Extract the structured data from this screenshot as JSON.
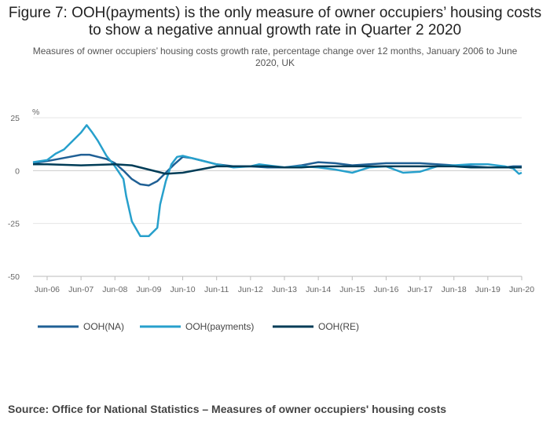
{
  "title": "Figure 7: OOH(payments) is the only measure of owner occupiers’ housing costs to show a negative annual growth rate in Quarter 2 2020",
  "subtitle": "Measures of owner occupiers’ housing costs growth rate, percentage change over 12 months, January 2006 to June 2020, UK",
  "source": "Source: Office for National Statistics – Measures of owner occupiers' housing costs",
  "chart_data": {
    "type": "line",
    "ylabel": "%",
    "ylim": [
      -50,
      25
    ],
    "yticks": [
      25,
      0,
      -25,
      -50
    ],
    "x_start": "Jan 2006",
    "x_end": "Jun 2020",
    "x_tick_labels": [
      "Jun-06",
      "Jun-07",
      "Jun-08",
      "Jun-09",
      "Jun-10",
      "Jun-11",
      "Jun-12",
      "Jun-13",
      "Jun-14",
      "Jun-15",
      "Jun-16",
      "Jun-17",
      "Jun-18",
      "Jun-19",
      "Jun-20"
    ],
    "grid": true,
    "legend_position": "bottom-left",
    "series": [
      {
        "name": "OOH(NA)",
        "color": "#206095",
        "points": [
          [
            "Jan-06",
            3.5
          ],
          [
            "Jun-06",
            4.5
          ],
          [
            "Dec-06",
            6
          ],
          [
            "Jun-07",
            7.5
          ],
          [
            "Sep-07",
            7.5
          ],
          [
            "Dec-07",
            6.5
          ],
          [
            "Mar-08",
            5.5
          ],
          [
            "Jun-08",
            3.5
          ],
          [
            "Sep-08",
            0
          ],
          [
            "Dec-08",
            -4
          ],
          [
            "Mar-09",
            -6.5
          ],
          [
            "Jun-09",
            -7
          ],
          [
            "Sep-09",
            -5
          ],
          [
            "Dec-09",
            -1
          ],
          [
            "Mar-10",
            3
          ],
          [
            "Jun-10",
            6.5
          ],
          [
            "Sep-10",
            6
          ],
          [
            "Dec-10",
            5
          ],
          [
            "Jun-11",
            3
          ],
          [
            "Dec-11",
            2
          ],
          [
            "Jun-12",
            2
          ],
          [
            "Dec-12",
            1.5
          ],
          [
            "Jun-13",
            1.5
          ],
          [
            "Dec-13",
            2.5
          ],
          [
            "Jun-14",
            4
          ],
          [
            "Dec-14",
            3.5
          ],
          [
            "Jun-15",
            2.5
          ],
          [
            "Dec-15",
            3
          ],
          [
            "Jun-16",
            3.5
          ],
          [
            "Dec-16",
            3.5
          ],
          [
            "Jun-17",
            3.5
          ],
          [
            "Dec-17",
            3
          ],
          [
            "Jun-18",
            2.5
          ],
          [
            "Dec-18",
            2
          ],
          [
            "Jun-19",
            1.5
          ],
          [
            "Dec-19",
            1.5
          ],
          [
            "Mar-20",
            2
          ],
          [
            "Jun-20",
            2
          ]
        ]
      },
      {
        "name": "OOH(payments)",
        "color": "#27a0cc",
        "points": [
          [
            "Jan-06",
            4
          ],
          [
            "Jun-06",
            5
          ],
          [
            "Sep-06",
            8
          ],
          [
            "Dec-06",
            10
          ],
          [
            "Mar-07",
            14
          ],
          [
            "Jun-07",
            18
          ],
          [
            "Aug-07",
            21.5
          ],
          [
            "Oct-07",
            18
          ],
          [
            "Dec-07",
            14
          ],
          [
            "Mar-08",
            7
          ],
          [
            "Jun-08",
            2
          ],
          [
            "Sep-08",
            -4
          ],
          [
            "Oct-08",
            -12
          ],
          [
            "Dec-08",
            -24
          ],
          [
            "Mar-09",
            -31
          ],
          [
            "Jun-09",
            -31
          ],
          [
            "Sep-09",
            -27
          ],
          [
            "Oct-09",
            -16
          ],
          [
            "Dec-09",
            -5
          ],
          [
            "Feb-10",
            3
          ],
          [
            "Apr-10",
            6.5
          ],
          [
            "Jun-10",
            7
          ],
          [
            "Sep-10",
            6
          ],
          [
            "Dec-10",
            5
          ],
          [
            "Jun-11",
            3
          ],
          [
            "Dec-11",
            1.5
          ],
          [
            "Jun-12",
            2
          ],
          [
            "Sep-12",
            3
          ],
          [
            "Dec-12",
            2.5
          ],
          [
            "Jun-13",
            1.5
          ],
          [
            "Dec-13",
            2
          ],
          [
            "Jun-14",
            1.5
          ],
          [
            "Dec-14",
            0.5
          ],
          [
            "Jun-15",
            -1
          ],
          [
            "Dec-15",
            1.5
          ],
          [
            "Jun-16",
            2
          ],
          [
            "Sep-16",
            0.5
          ],
          [
            "Dec-16",
            -1
          ],
          [
            "Jun-17",
            -0.5
          ],
          [
            "Dec-17",
            2
          ],
          [
            "Jun-18",
            2.5
          ],
          [
            "Dec-18",
            3
          ],
          [
            "Jun-19",
            3
          ],
          [
            "Dec-19",
            2
          ],
          [
            "Mar-20",
            1
          ],
          [
            "May-20",
            -1.5
          ],
          [
            "Jun-20",
            -1
          ]
        ]
      },
      {
        "name": "OOH(RE)",
        "color": "#003c57",
        "points": [
          [
            "Jan-06",
            3
          ],
          [
            "Jun-06",
            3
          ],
          [
            "Jun-07",
            2.5
          ],
          [
            "Jun-08",
            3
          ],
          [
            "Dec-08",
            2.5
          ],
          [
            "Jun-09",
            0.5
          ],
          [
            "Dec-09",
            -1.5
          ],
          [
            "Jun-10",
            -1
          ],
          [
            "Dec-10",
            0.5
          ],
          [
            "Jun-11",
            2
          ],
          [
            "Dec-11",
            2
          ],
          [
            "Jun-12",
            2
          ],
          [
            "Dec-12",
            2
          ],
          [
            "Jun-13",
            1.5
          ],
          [
            "Dec-13",
            1.5
          ],
          [
            "Jun-14",
            2
          ],
          [
            "Dec-14",
            2
          ],
          [
            "Jun-15",
            2
          ],
          [
            "Dec-15",
            2
          ],
          [
            "Jun-16",
            2
          ],
          [
            "Dec-16",
            2
          ],
          [
            "Jun-17",
            2
          ],
          [
            "Dec-17",
            2
          ],
          [
            "Jun-18",
            2
          ],
          [
            "Dec-18",
            1.5
          ],
          [
            "Jun-19",
            1.5
          ],
          [
            "Dec-19",
            1.5
          ],
          [
            "Jun-20",
            1.5
          ]
        ]
      }
    ]
  }
}
